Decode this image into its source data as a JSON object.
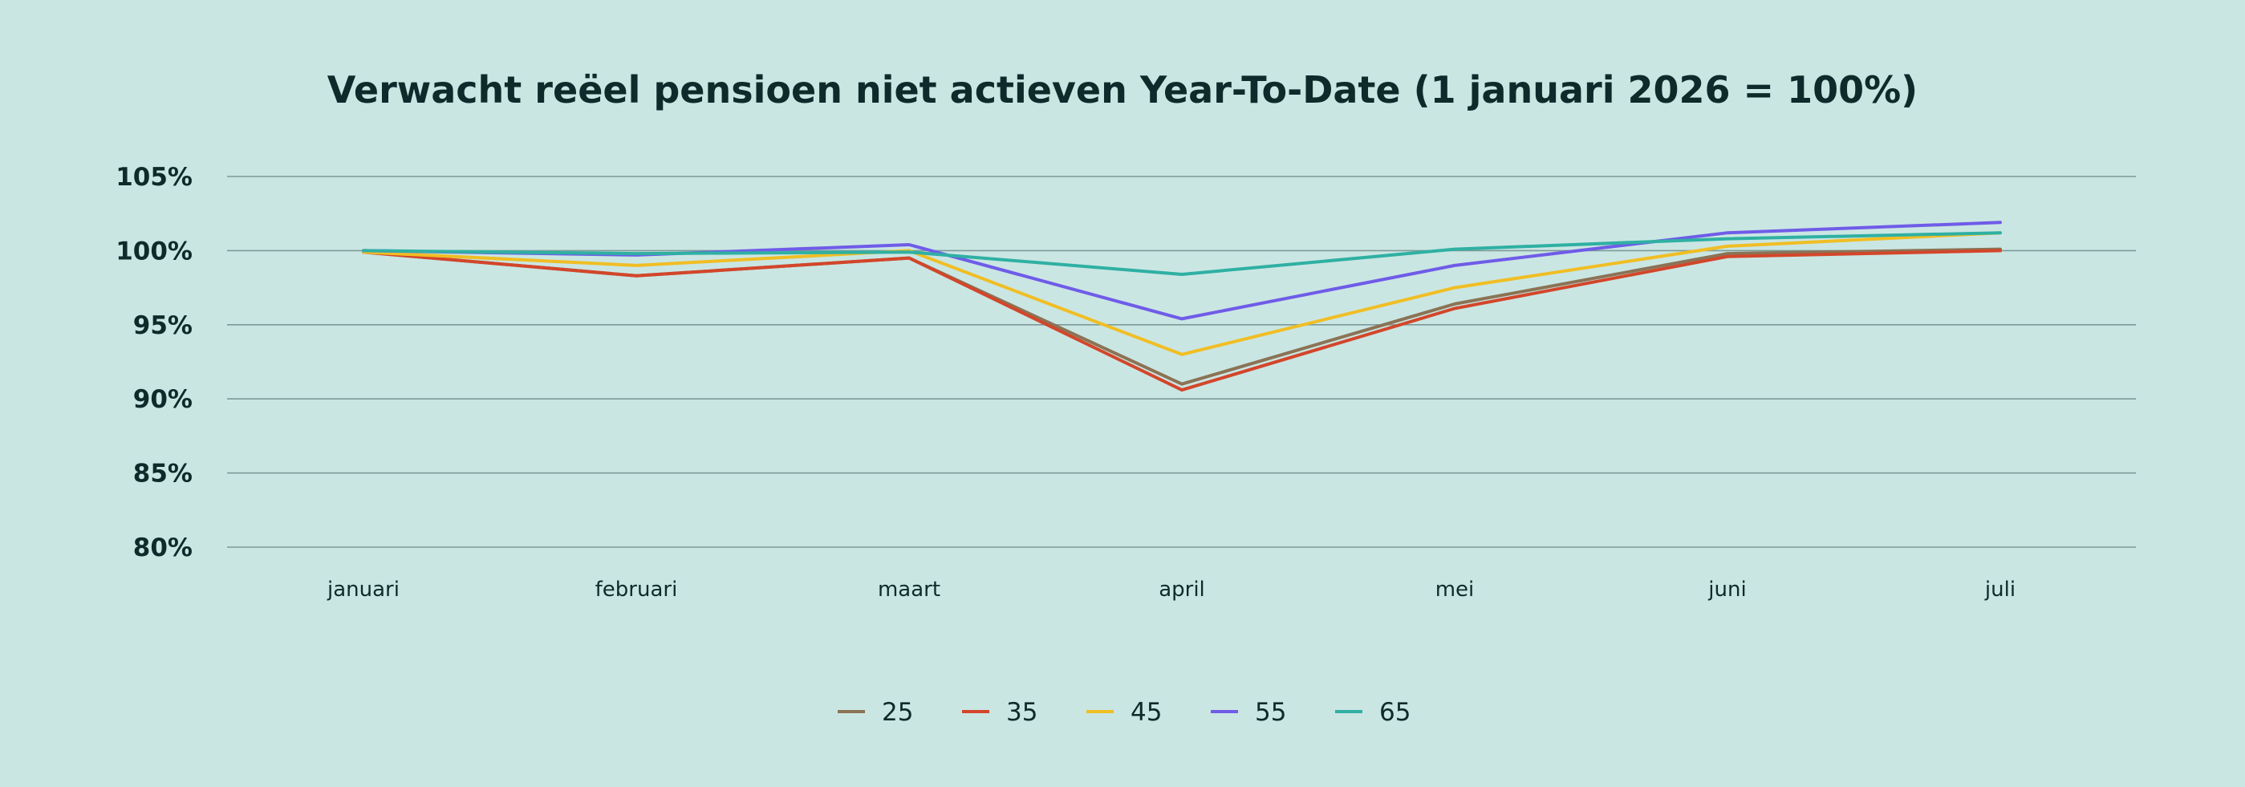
{
  "chart_data": {
    "type": "line",
    "title": "Verwacht reëel pensioen niet actieven Year-To-Date (1 januari 2026 = 100%)",
    "xlabel": "",
    "ylabel": "",
    "categories": [
      "januari",
      "februari",
      "maart",
      "april",
      "mei",
      "juni",
      "juli"
    ],
    "ylim": [
      80,
      105
    ],
    "yticks": [
      80,
      85,
      90,
      95,
      100,
      105
    ],
    "ytick_suffix": "%",
    "grid": true,
    "legend": "bottom",
    "series": [
      {
        "name": "25",
        "color": "#8b7355",
        "values": [
          99.9,
          98.3,
          99.5,
          91.0,
          96.4,
          99.8,
          100.1
        ]
      },
      {
        "name": "35",
        "color": "#d3462a",
        "values": [
          99.9,
          98.3,
          99.5,
          90.6,
          96.1,
          99.6,
          100.0
        ]
      },
      {
        "name": "45",
        "color": "#f0be24",
        "values": [
          99.9,
          99.0,
          100.0,
          93.0,
          97.5,
          100.3,
          101.2
        ]
      },
      {
        "name": "55",
        "color": "#6f5ce8",
        "values": [
          100.0,
          99.7,
          100.4,
          95.4,
          99.0,
          101.2,
          101.9
        ]
      },
      {
        "name": "65",
        "color": "#2fb0a3",
        "values": [
          100.0,
          99.8,
          99.9,
          98.4,
          100.1,
          100.8,
          101.2
        ]
      }
    ]
  }
}
